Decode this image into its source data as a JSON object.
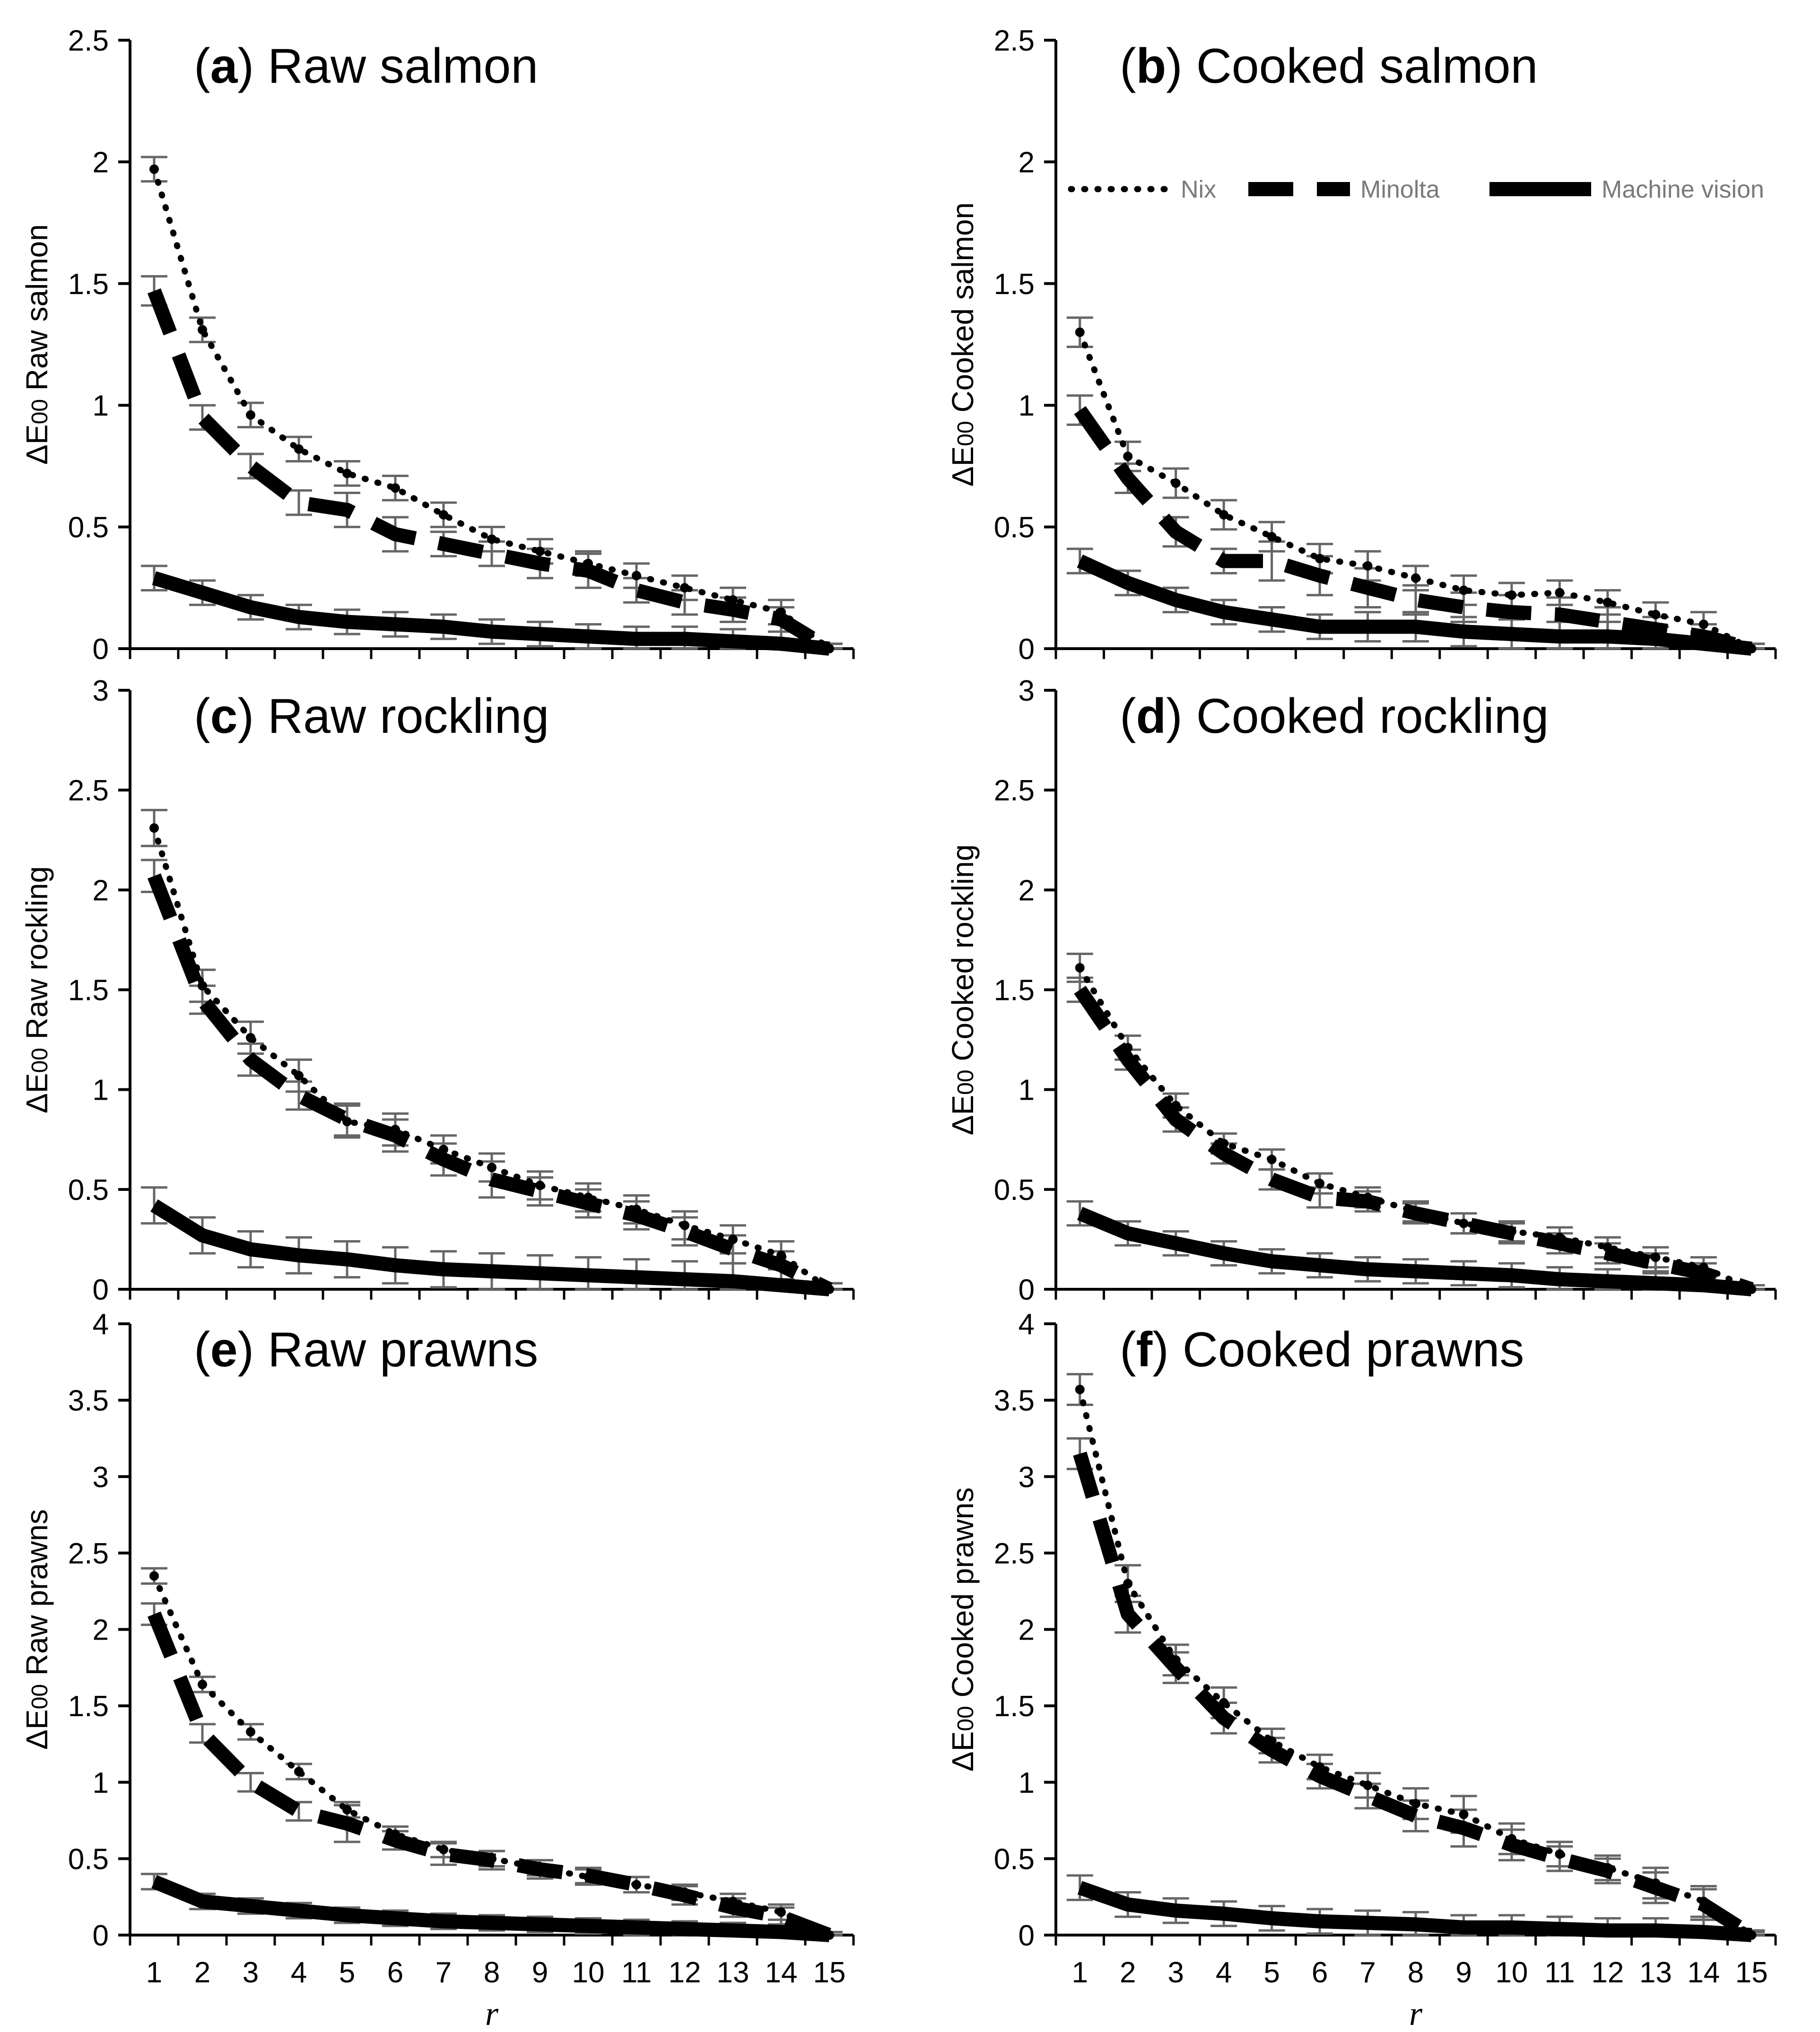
{
  "chart_data": [
    {
      "type": "line",
      "panel_letter": "a",
      "title_text": "Raw salmon",
      "ylabel_prefix": "ΔE",
      "ylabel_sub": "00",
      "ylabel_text": "Raw salmon",
      "xlabel": "",
      "x": [
        1,
        2,
        3,
        4,
        5,
        6,
        7,
        8,
        9,
        10,
        11,
        12,
        13,
        14,
        15
      ],
      "ylim": [
        0,
        2.5
      ],
      "yticks": [
        0,
        0.5,
        1,
        1.5,
        2,
        2.5
      ],
      "ytick_labels": [
        "0",
        "0.5",
        "1",
        "1.5",
        "2",
        "2.5"
      ],
      "xtick_labels": [],
      "series": [
        {
          "name": "Nix",
          "style": "dotted",
          "values": [
            1.97,
            1.31,
            0.96,
            0.82,
            0.72,
            0.66,
            0.55,
            0.45,
            0.4,
            0.35,
            0.3,
            0.25,
            0.2,
            0.15,
            0.0
          ],
          "errors": [
            0.05,
            0.05,
            0.05,
            0.05,
            0.05,
            0.05,
            0.05,
            0.05,
            0.05,
            0.05,
            0.05,
            0.05,
            0.05,
            0.05,
            0.02
          ]
        },
        {
          "name": "Minolta",
          "style": "dashed",
          "values": [
            1.47,
            0.95,
            0.75,
            0.6,
            0.57,
            0.47,
            0.43,
            0.39,
            0.35,
            0.32,
            0.24,
            0.19,
            0.16,
            0.12,
            0.0
          ],
          "errors": [
            0.06,
            0.05,
            0.05,
            0.05,
            0.07,
            0.07,
            0.05,
            0.05,
            0.06,
            0.07,
            0.05,
            0.05,
            0.05,
            0.05,
            0.02
          ]
        },
        {
          "name": "Machine vision",
          "style": "solid",
          "values": [
            0.29,
            0.23,
            0.17,
            0.13,
            0.11,
            0.1,
            0.09,
            0.07,
            0.06,
            0.05,
            0.04,
            0.04,
            0.03,
            0.02,
            0.0
          ],
          "errors": [
            0.05,
            0.05,
            0.05,
            0.05,
            0.05,
            0.05,
            0.05,
            0.05,
            0.05,
            0.05,
            0.05,
            0.05,
            0.05,
            0.05,
            0.02
          ]
        }
      ]
    },
    {
      "type": "line",
      "panel_letter": "b",
      "title_text": "Cooked salmon",
      "ylabel_prefix": "ΔE",
      "ylabel_sub": "00",
      "ylabel_text": "Cooked salmon",
      "xlabel": "",
      "x": [
        1,
        2,
        3,
        4,
        5,
        6,
        7,
        8,
        9,
        10,
        11,
        12,
        13,
        14,
        15
      ],
      "ylim": [
        0,
        2.5
      ],
      "yticks": [
        0,
        0.5,
        1,
        1.5,
        2,
        2.5
      ],
      "ytick_labels": [
        "0",
        "0.5",
        "1",
        "1.5",
        "2",
        "2.5"
      ],
      "xtick_labels": [],
      "legend": {
        "position": "top",
        "entries": [
          "Nix",
          "Minolta",
          "Machine vision"
        ]
      },
      "series": [
        {
          "name": "Nix",
          "style": "dotted",
          "values": [
            1.3,
            0.79,
            0.68,
            0.55,
            0.46,
            0.37,
            0.34,
            0.29,
            0.24,
            0.22,
            0.23,
            0.19,
            0.14,
            0.1,
            0.0
          ],
          "errors": [
            0.06,
            0.06,
            0.06,
            0.06,
            0.06,
            0.06,
            0.06,
            0.05,
            0.06,
            0.05,
            0.05,
            0.05,
            0.05,
            0.05,
            0.02
          ]
        },
        {
          "name": "Minolta",
          "style": "dashed",
          "values": [
            0.98,
            0.7,
            0.48,
            0.36,
            0.36,
            0.3,
            0.25,
            0.2,
            0.17,
            0.15,
            0.14,
            0.11,
            0.08,
            0.05,
            0.0
          ],
          "errors": [
            0.06,
            0.06,
            0.06,
            0.05,
            0.08,
            0.08,
            0.08,
            0.06,
            0.06,
            0.07,
            0.07,
            0.06,
            0.05,
            0.05,
            0.02
          ]
        },
        {
          "name": "Machine vision",
          "style": "solid",
          "values": [
            0.36,
            0.27,
            0.2,
            0.15,
            0.12,
            0.09,
            0.09,
            0.09,
            0.07,
            0.06,
            0.05,
            0.05,
            0.04,
            0.02,
            0.0
          ],
          "errors": [
            0.05,
            0.05,
            0.05,
            0.05,
            0.05,
            0.05,
            0.06,
            0.06,
            0.06,
            0.06,
            0.06,
            0.06,
            0.05,
            0.05,
            0.02
          ]
        }
      ]
    },
    {
      "type": "line",
      "panel_letter": "c",
      "title_text": "Raw rockling",
      "ylabel_prefix": "ΔE",
      "ylabel_sub": "00",
      "ylabel_text": "Raw rockling",
      "xlabel": "",
      "x": [
        1,
        2,
        3,
        4,
        5,
        6,
        7,
        8,
        9,
        10,
        11,
        12,
        13,
        14,
        15
      ],
      "ylim": [
        0,
        3
      ],
      "yticks": [
        0,
        0.5,
        1,
        1.5,
        2,
        2.5,
        3
      ],
      "ytick_labels": [
        "0",
        "0.5",
        "1",
        "1.5",
        "2",
        "2.5",
        "3"
      ],
      "xtick_labels": [],
      "series": [
        {
          "name": "Nix",
          "style": "dotted",
          "values": [
            2.31,
            1.52,
            1.26,
            1.07,
            0.84,
            0.8,
            0.7,
            0.61,
            0.52,
            0.46,
            0.4,
            0.32,
            0.25,
            0.17,
            0.0
          ],
          "errors": [
            0.09,
            0.08,
            0.08,
            0.08,
            0.08,
            0.08,
            0.07,
            0.07,
            0.07,
            0.07,
            0.07,
            0.07,
            0.07,
            0.07,
            0.03
          ]
        },
        {
          "name": "Minolta",
          "style": "dashed",
          "values": [
            2.07,
            1.45,
            1.15,
            0.97,
            0.85,
            0.77,
            0.65,
            0.55,
            0.49,
            0.43,
            0.37,
            0.29,
            0.2,
            0.12,
            0.0
          ],
          "errors": [
            0.08,
            0.07,
            0.08,
            0.07,
            0.08,
            0.08,
            0.08,
            0.09,
            0.07,
            0.07,
            0.07,
            0.07,
            0.07,
            0.07,
            0.03
          ]
        },
        {
          "name": "Machine vision",
          "style": "solid",
          "values": [
            0.42,
            0.27,
            0.2,
            0.17,
            0.15,
            0.12,
            0.1,
            0.09,
            0.08,
            0.07,
            0.06,
            0.05,
            0.04,
            0.02,
            0.0
          ],
          "errors": [
            0.09,
            0.09,
            0.09,
            0.09,
            0.09,
            0.09,
            0.09,
            0.09,
            0.09,
            0.09,
            0.09,
            0.09,
            0.09,
            0.09,
            0.03
          ]
        }
      ]
    },
    {
      "type": "line",
      "panel_letter": "d",
      "title_text": "Cooked rockling",
      "ylabel_prefix": "ΔE",
      "ylabel_sub": "00",
      "ylabel_text": "Cooked rockling",
      "xlabel": "",
      "x": [
        1,
        2,
        3,
        4,
        5,
        6,
        7,
        8,
        9,
        10,
        11,
        12,
        13,
        14,
        15
      ],
      "ylim": [
        0,
        3
      ],
      "yticks": [
        0,
        0.5,
        1,
        1.5,
        2,
        2.5,
        3
      ],
      "ytick_labels": [
        "0",
        "0.5",
        "1",
        "1.5",
        "2",
        "2.5",
        "3"
      ],
      "xtick_labels": [],
      "series": [
        {
          "name": "Nix",
          "style": "dotted",
          "values": [
            1.61,
            1.21,
            0.92,
            0.73,
            0.65,
            0.53,
            0.46,
            0.39,
            0.33,
            0.29,
            0.26,
            0.21,
            0.16,
            0.11,
            0.0
          ],
          "errors": [
            0.07,
            0.06,
            0.06,
            0.05,
            0.05,
            0.05,
            0.05,
            0.05,
            0.05,
            0.05,
            0.05,
            0.05,
            0.05,
            0.05,
            0.02
          ]
        },
        {
          "name": "Minolta",
          "style": "dashed",
          "values": [
            1.5,
            1.15,
            0.85,
            0.68,
            0.55,
            0.46,
            0.44,
            0.38,
            0.33,
            0.28,
            0.23,
            0.18,
            0.13,
            0.08,
            0.0
          ],
          "errors": [
            0.06,
            0.05,
            0.06,
            0.05,
            0.05,
            0.05,
            0.05,
            0.05,
            0.05,
            0.05,
            0.05,
            0.05,
            0.05,
            0.05,
            0.02
          ]
        },
        {
          "name": "Machine vision",
          "style": "solid",
          "values": [
            0.38,
            0.28,
            0.23,
            0.18,
            0.14,
            0.12,
            0.1,
            0.09,
            0.08,
            0.07,
            0.05,
            0.04,
            0.03,
            0.02,
            0.0
          ],
          "errors": [
            0.06,
            0.06,
            0.06,
            0.06,
            0.06,
            0.06,
            0.06,
            0.06,
            0.06,
            0.06,
            0.06,
            0.06,
            0.06,
            0.06,
            0.02
          ]
        }
      ]
    },
    {
      "type": "line",
      "panel_letter": "e",
      "title_text": "Raw prawns",
      "ylabel_prefix": "ΔE",
      "ylabel_sub": "00",
      "ylabel_text": "Raw prawns",
      "xlabel": "r",
      "x": [
        1,
        2,
        3,
        4,
        5,
        6,
        7,
        8,
        9,
        10,
        11,
        12,
        13,
        14,
        15
      ],
      "ylim": [
        0,
        4
      ],
      "yticks": [
        0,
        0.5,
        1,
        1.5,
        2,
        2.5,
        3,
        3.5,
        4
      ],
      "ytick_labels": [
        "0",
        "0.5",
        "1",
        "1.5",
        "2",
        "2.5",
        "3",
        "3.5",
        "4"
      ],
      "xtick_labels": [
        "1",
        "2",
        "3",
        "4",
        "5",
        "6",
        "7",
        "8",
        "9",
        "10",
        "11",
        "12",
        "13",
        "14",
        "15"
      ],
      "series": [
        {
          "name": "Nix",
          "style": "dotted",
          "values": [
            2.35,
            1.64,
            1.33,
            1.07,
            0.82,
            0.66,
            0.56,
            0.5,
            0.44,
            0.38,
            0.33,
            0.28,
            0.22,
            0.15,
            0.0
          ],
          "errors": [
            0.05,
            0.05,
            0.05,
            0.05,
            0.05,
            0.05,
            0.05,
            0.05,
            0.05,
            0.05,
            0.05,
            0.05,
            0.05,
            0.05,
            0.02
          ]
        },
        {
          "name": "Minolta",
          "style": "dashed",
          "values": [
            2.1,
            1.32,
            1.0,
            0.81,
            0.73,
            0.62,
            0.53,
            0.49,
            0.43,
            0.39,
            0.33,
            0.26,
            0.18,
            0.12,
            0.0
          ],
          "errors": [
            0.07,
            0.06,
            0.06,
            0.06,
            0.12,
            0.06,
            0.07,
            0.06,
            0.06,
            0.05,
            0.05,
            0.06,
            0.06,
            0.06,
            0.02
          ]
        },
        {
          "name": "Machine vision",
          "style": "solid",
          "values": [
            0.35,
            0.22,
            0.19,
            0.16,
            0.13,
            0.11,
            0.09,
            0.08,
            0.07,
            0.06,
            0.05,
            0.04,
            0.03,
            0.02,
            0.0
          ],
          "errors": [
            0.05,
            0.05,
            0.05,
            0.05,
            0.05,
            0.05,
            0.05,
            0.05,
            0.05,
            0.05,
            0.05,
            0.05,
            0.05,
            0.05,
            0.02
          ]
        }
      ]
    },
    {
      "type": "line",
      "panel_letter": "f",
      "title_text": "Cooked prawns",
      "ylabel_prefix": "ΔE",
      "ylabel_sub": "00",
      "ylabel_text": "Cooked prawns",
      "xlabel": "r",
      "x": [
        1,
        2,
        3,
        4,
        5,
        6,
        7,
        8,
        9,
        10,
        11,
        12,
        13,
        14,
        15
      ],
      "ylim": [
        0,
        4
      ],
      "yticks": [
        0,
        0.5,
        1,
        1.5,
        2,
        2.5,
        3,
        3.5,
        4
      ],
      "ytick_labels": [
        "0",
        "0.5",
        "1",
        "1.5",
        "2",
        "2.5",
        "3",
        "3.5",
        "4"
      ],
      "xtick_labels": [
        "1",
        "2",
        "3",
        "4",
        "5",
        "6",
        "7",
        "8",
        "9",
        "10",
        "11",
        "12",
        "13",
        "14",
        "15"
      ],
      "series": [
        {
          "name": "Nix",
          "style": "dotted",
          "values": [
            3.57,
            2.3,
            1.8,
            1.52,
            1.27,
            1.1,
            0.98,
            0.86,
            0.79,
            0.63,
            0.53,
            0.44,
            0.34,
            0.22,
            0.0
          ],
          "errors": [
            0.1,
            0.12,
            0.1,
            0.1,
            0.08,
            0.08,
            0.08,
            0.1,
            0.12,
            0.1,
            0.08,
            0.08,
            0.1,
            0.1,
            0.03
          ]
        },
        {
          "name": "Minolta",
          "style": "dashed",
          "values": [
            3.15,
            2.1,
            1.75,
            1.42,
            1.21,
            1.04,
            0.91,
            0.78,
            0.7,
            0.59,
            0.5,
            0.42,
            0.31,
            0.2,
            0.0
          ],
          "errors": [
            0.1,
            0.12,
            0.1,
            0.1,
            0.08,
            0.08,
            0.08,
            0.1,
            0.12,
            0.1,
            0.08,
            0.08,
            0.1,
            0.1,
            0.03
          ]
        },
        {
          "name": "Machine vision",
          "style": "solid",
          "values": [
            0.31,
            0.2,
            0.16,
            0.14,
            0.11,
            0.09,
            0.08,
            0.07,
            0.05,
            0.05,
            0.04,
            0.03,
            0.03,
            0.02,
            0.0
          ],
          "errors": [
            0.08,
            0.08,
            0.08,
            0.08,
            0.08,
            0.08,
            0.08,
            0.08,
            0.08,
            0.08,
            0.08,
            0.08,
            0.08,
            0.08,
            0.02
          ]
        }
      ]
    }
  ]
}
